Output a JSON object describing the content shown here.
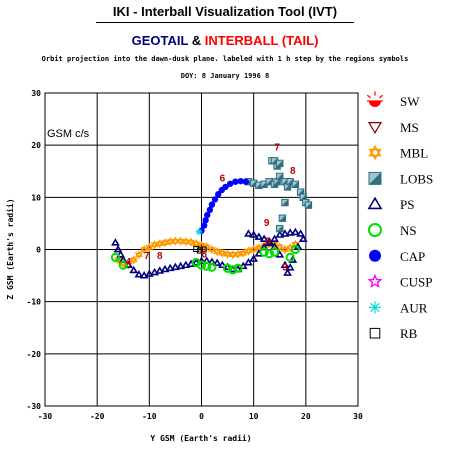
{
  "header": {
    "title": "IKI - Interball Visualization Tool (IVT)",
    "subtitle_left": "GEOTAIL",
    "subtitle_amp": "&",
    "subtitle_right": "INTERBALL (TAIL)",
    "description": "Orbit projection into the dawn-dusk plane. labeled with 1 h step by the regions symbols",
    "doy": "DOY: 8  January 1996 8"
  },
  "chart_data": {
    "type": "scatter",
    "xlabel": "Y GSM (Earth's radii)",
    "ylabel": "Z GSM (Earth's radii)",
    "frame_label": "GSM c/s",
    "xlim": [
      -30,
      30
    ],
    "ylim": [
      -30,
      30
    ],
    "x_ticks": [
      -30,
      -20,
      -10,
      0,
      10,
      20,
      30
    ],
    "y_ticks": [
      -30,
      -20,
      -10,
      0,
      10,
      20,
      30
    ],
    "grid": true,
    "legend_placement": "right",
    "legend": [
      {
        "name": "SW",
        "symbol": "sun",
        "color": "#ff0000"
      },
      {
        "name": "MS",
        "symbol": "triangle-down",
        "color": "#7f0000"
      },
      {
        "name": "MBL",
        "symbol": "star-of-david",
        "color": "#ff9900"
      },
      {
        "name": "LOBS",
        "symbol": "split-square",
        "color": "#2f6f7f"
      },
      {
        "name": "PS",
        "symbol": "triangle-up",
        "color": "#00007f"
      },
      {
        "name": "NS",
        "symbol": "circle-open",
        "color": "#00dd00"
      },
      {
        "name": "CAP",
        "symbol": "circle-filled",
        "color": "#0000ff"
      },
      {
        "name": "CUSP",
        "symbol": "star",
        "color": "#ff00ff"
      },
      {
        "name": "AUR",
        "symbol": "asterisk",
        "color": "#00dddd"
      },
      {
        "name": "RB",
        "symbol": "square-open",
        "color": "#000000"
      }
    ],
    "series": [
      {
        "name": "MBL",
        "color": "#ff9900",
        "points": [
          [
            -16,
            -2
          ],
          [
            -15,
            -2.7
          ],
          [
            -14,
            -3
          ],
          [
            -13,
            -2
          ],
          [
            -12,
            -1
          ],
          [
            -11,
            0
          ],
          [
            -10,
            0.4
          ],
          [
            -9,
            0.9
          ],
          [
            -8,
            1.1
          ],
          [
            -7,
            1.3
          ],
          [
            -6,
            1.5
          ],
          [
            -5,
            1.6
          ],
          [
            -4,
            1.6
          ],
          [
            -3,
            1.5
          ],
          [
            -2,
            1.4
          ],
          [
            -1,
            1.1
          ],
          [
            0,
            0.8
          ],
          [
            1,
            0.5
          ],
          [
            2,
            0
          ],
          [
            3,
            -0.4
          ],
          [
            4,
            -0.7
          ],
          [
            5,
            -0.9
          ],
          [
            6,
            -1
          ],
          [
            7,
            -0.9
          ],
          [
            8,
            -0.7
          ],
          [
            9,
            -0.3
          ],
          [
            10,
            0
          ],
          [
            11,
            0.3
          ],
          [
            12,
            0.7
          ],
          [
            13,
            1
          ],
          [
            14,
            1
          ],
          [
            15,
            0.5
          ],
          [
            16,
            0
          ],
          [
            17,
            0.3
          ],
          [
            18,
            1
          ]
        ]
      },
      {
        "name": "PS",
        "color": "#00007f",
        "points": [
          [
            -16.5,
            1.3
          ],
          [
            -16,
            0
          ],
          [
            -15.5,
            -1
          ],
          [
            -15,
            -2
          ],
          [
            -14,
            -3
          ],
          [
            -13,
            -4
          ],
          [
            -12,
            -4.8
          ],
          [
            -11,
            -5
          ],
          [
            -10,
            -4.7
          ],
          [
            -9,
            -4.4
          ],
          [
            -8,
            -4.1
          ],
          [
            -7,
            -3.8
          ],
          [
            -6,
            -3.6
          ],
          [
            -5,
            -3.4
          ],
          [
            -4,
            -3.2
          ],
          [
            -3,
            -3
          ],
          [
            -2,
            -2.8
          ],
          [
            -1,
            -2.5
          ],
          [
            0,
            -2.2
          ],
          [
            1,
            -2.2
          ],
          [
            2,
            -2.4
          ],
          [
            3,
            -2.6
          ],
          [
            4,
            -3
          ],
          [
            5,
            -3.4
          ],
          [
            6,
            -3.8
          ],
          [
            7,
            -3.8
          ],
          [
            8,
            -3.2
          ],
          [
            9,
            -2.5
          ],
          [
            10,
            -1.8
          ],
          [
            11,
            -0.8
          ],
          [
            12,
            0.4
          ],
          [
            13,
            1.2
          ],
          [
            14,
            2
          ],
          [
            15,
            2.8
          ],
          [
            16,
            3
          ],
          [
            17,
            3.2
          ],
          [
            18,
            3.3
          ],
          [
            19,
            3
          ],
          [
            19.5,
            2
          ],
          [
            18.5,
            0.5
          ],
          [
            17.5,
            -2
          ],
          [
            17,
            -3.5
          ],
          [
            16.5,
            -4.5
          ],
          [
            16,
            -3
          ],
          [
            15,
            -1
          ],
          [
            14,
            0.5
          ],
          [
            13,
            1.5
          ],
          [
            12,
            2
          ],
          [
            11,
            2.4
          ],
          [
            10,
            2.8
          ],
          [
            9,
            3
          ]
        ]
      },
      {
        "name": "NS",
        "color": "#00dd00",
        "points": [
          [
            -16.5,
            -1.5
          ],
          [
            -15,
            -3
          ],
          [
            -1,
            -2.5
          ],
          [
            0,
            -3
          ],
          [
            1,
            -3.2
          ],
          [
            2,
            -3.4
          ],
          [
            5,
            -3.6
          ],
          [
            6,
            -3.9
          ],
          [
            7,
            -3.6
          ],
          [
            12,
            -0.5
          ],
          [
            13,
            -0.8
          ],
          [
            14,
            -0.5
          ],
          [
            17,
            -1.5
          ],
          [
            18,
            0
          ]
        ]
      },
      {
        "name": "LOBS",
        "color": "#2f6f7f",
        "points": [
          [
            9,
            13
          ],
          [
            10,
            12.7
          ],
          [
            11,
            12.3
          ],
          [
            12,
            12.5
          ],
          [
            13,
            13
          ],
          [
            14,
            12.5
          ],
          [
            14.5,
            13
          ],
          [
            13.5,
            17
          ],
          [
            14.5,
            16
          ],
          [
            15,
            14
          ],
          [
            16,
            13
          ],
          [
            16.5,
            12
          ],
          [
            16,
            9
          ],
          [
            15.5,
            6
          ],
          [
            15,
            4
          ],
          [
            17,
            13
          ],
          [
            18,
            12.5
          ],
          [
            19,
            11
          ],
          [
            19.5,
            10
          ],
          [
            20,
            9
          ],
          [
            20.5,
            8.5
          ],
          [
            14,
            17
          ],
          [
            15,
            16.5
          ]
        ]
      },
      {
        "name": "CAP",
        "color": "#0000ff",
        "points": [
          [
            0,
            3.6
          ],
          [
            0.5,
            4.6
          ],
          [
            0.8,
            5.6
          ],
          [
            1.1,
            6.6
          ],
          [
            1.6,
            7.6
          ],
          [
            2,
            8.6
          ],
          [
            2.6,
            9.6
          ],
          [
            3.2,
            10.6
          ],
          [
            3.9,
            11.4
          ],
          [
            4.6,
            12
          ],
          [
            5.5,
            12.6
          ],
          [
            6.5,
            13
          ],
          [
            7.5,
            13.1
          ],
          [
            8.5,
            13
          ]
        ]
      },
      {
        "name": "AUR",
        "color": "#00dddd",
        "points": [
          [
            -0.5,
            3.4
          ]
        ]
      },
      {
        "name": "RB",
        "color": "#000000",
        "points": [
          [
            -1,
            0.1
          ],
          [
            -0.3,
            -0.2
          ],
          [
            0.4,
            0
          ]
        ]
      }
    ],
    "annotations": [
      {
        "text": "6",
        "x": 4,
        "y": 13
      },
      {
        "text": "7",
        "x": 14.5,
        "y": 19
      },
      {
        "text": "8",
        "x": 17.5,
        "y": 14.5
      },
      {
        "text": "9",
        "x": 12.5,
        "y": 4.5
      },
      {
        "text": "8",
        "x": -8,
        "y": -1.8
      },
      {
        "text": "7",
        "x": -10.5,
        "y": -1.8
      },
      {
        "text": "5",
        "x": 12.8,
        "y": 1
      },
      {
        "text": "6",
        "x": 0.5,
        "y": -1.5
      },
      {
        "text": "4",
        "x": -14,
        "y": -3
      },
      {
        "text": "3",
        "x": 16,
        "y": -4
      }
    ]
  }
}
